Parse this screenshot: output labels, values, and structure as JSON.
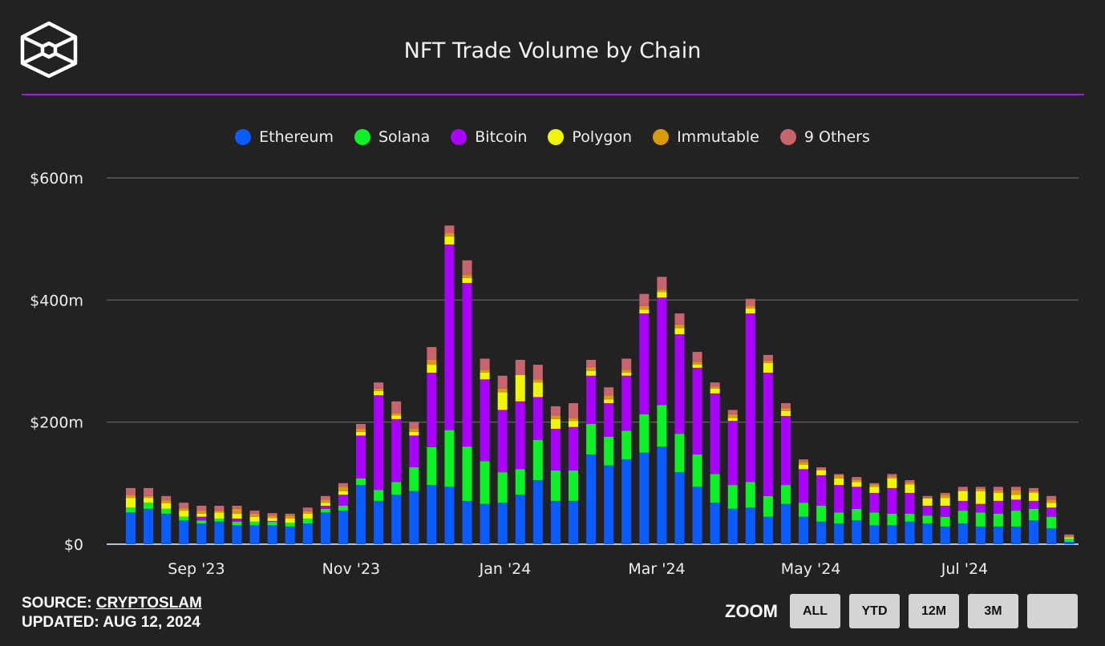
{
  "header": {
    "title": "NFT Trade Volume by Chain",
    "logo_icon": "cube-logo-icon"
  },
  "footer": {
    "source_label": "SOURCE:",
    "source_name": "CRYPTOSLAM",
    "updated": "UPDATED: AUG 12, 2024",
    "zoom_label": "ZOOM",
    "zoom_buttons": [
      "ALL",
      "YTD",
      "12M",
      "3M",
      ""
    ]
  },
  "chart_data": {
    "type": "bar",
    "stacked": true,
    "title": "NFT Trade Volume by Chain",
    "xlabel": "",
    "ylabel": "",
    "ylim": [
      0,
      600
    ],
    "y_unit": "$m",
    "y_ticks": [
      {
        "value": 0,
        "label": "$0"
      },
      {
        "value": 200,
        "label": "$200m"
      },
      {
        "value": 400,
        "label": "$400m"
      },
      {
        "value": 600,
        "label": "$600m"
      }
    ],
    "x_ticks": [
      {
        "week_index": 3.71,
        "label": "Sep '23"
      },
      {
        "week_index": 12.45,
        "label": "Nov '23"
      },
      {
        "week_index": 21.15,
        "label": "Jan '24"
      },
      {
        "week_index": 29.71,
        "label": "Mar '24"
      },
      {
        "week_index": 38.41,
        "label": "May '24"
      },
      {
        "week_index": 47.1,
        "label": "Jul '24"
      }
    ],
    "grid": true,
    "legend_position": "top-center",
    "series": [
      {
        "name": "Ethereum",
        "color": "#0a5cff",
        "values": [
          52,
          58,
          50,
          39,
          34,
          37,
          31,
          31,
          31,
          29,
          34,
          52,
          55,
          97,
          71,
          81,
          87,
          97,
          94,
          71,
          66,
          68,
          81,
          105,
          71,
          71,
          147,
          129,
          139,
          150,
          160,
          118,
          94,
          68,
          58,
          60,
          45,
          66,
          45,
          37,
          34,
          39,
          31,
          31,
          37,
          34,
          29,
          34,
          29,
          29,
          29,
          39,
          26,
          4
        ]
      },
      {
        "name": "Solana",
        "color": "#0cf227",
        "values": [
          8,
          10,
          8,
          6,
          5,
          5,
          6,
          6,
          6,
          6,
          8,
          6,
          8,
          11,
          18,
          21,
          39,
          62,
          93,
          89,
          70,
          50,
          42,
          66,
          50,
          50,
          50,
          47,
          47,
          63,
          68,
          63,
          53,
          47,
          39,
          42,
          34,
          31,
          23,
          26,
          18,
          19,
          21,
          19,
          13,
          13,
          16,
          21,
          23,
          21,
          26,
          19,
          19,
          5
        ]
      },
      {
        "name": "Bitcoin",
        "color": "#aa00ff",
        "values": [
          0,
          0,
          0,
          0,
          6,
          0,
          5,
          0,
          1,
          0,
          0,
          5,
          18,
          70,
          155,
          103,
          52,
          122,
          304,
          268,
          134,
          102,
          111,
          70,
          68,
          71,
          79,
          55,
          90,
          165,
          176,
          163,
          142,
          132,
          105,
          276,
          202,
          113,
          55,
          50,
          45,
          36,
          32,
          42,
          34,
          16,
          18,
          16,
          14,
          21,
          18,
          13,
          15,
          0
        ]
      },
      {
        "name": "Polygon",
        "color": "#eef700",
        "values": [
          16,
          8,
          9,
          10,
          5,
          10,
          8,
          8,
          5,
          7,
          8,
          5,
          6,
          6,
          7,
          6,
          6,
          13,
          13,
          8,
          11,
          29,
          43,
          24,
          16,
          10,
          8,
          6,
          5,
          6,
          9,
          10,
          5,
          8,
          5,
          8,
          16,
          8,
          7,
          8,
          11,
          8,
          10,
          16,
          14,
          12,
          13,
          16,
          21,
          13,
          8,
          13,
          8,
          2
        ]
      },
      {
        "name": "Immutable",
        "color": "#d99a0b",
        "values": [
          5,
          3,
          5,
          4,
          5,
          3,
          8,
          5,
          4,
          5,
          4,
          5,
          7,
          5,
          4,
          4,
          5,
          8,
          6,
          5,
          5,
          6,
          1,
          5,
          6,
          5,
          6,
          7,
          5,
          6,
          4,
          6,
          5,
          3,
          6,
          5,
          4,
          5,
          5,
          2,
          5,
          4,
          4,
          3,
          3,
          1,
          5,
          2,
          4,
          4,
          8,
          3,
          5,
          2
        ]
      },
      {
        "name": "9 Others",
        "color": "#c8646e",
        "values": [
          11,
          13,
          7,
          9,
          8,
          8,
          5,
          5,
          4,
          3,
          6,
          6,
          6,
          8,
          10,
          19,
          11,
          21,
          12,
          24,
          18,
          21,
          24,
          24,
          15,
          24,
          12,
          13,
          18,
          20,
          21,
          18,
          16,
          7,
          7,
          11,
          9,
          8,
          4,
          3,
          2,
          4,
          2,
          4,
          4,
          3,
          3,
          5,
          3,
          6,
          5,
          5,
          6,
          3
        ]
      }
    ]
  }
}
